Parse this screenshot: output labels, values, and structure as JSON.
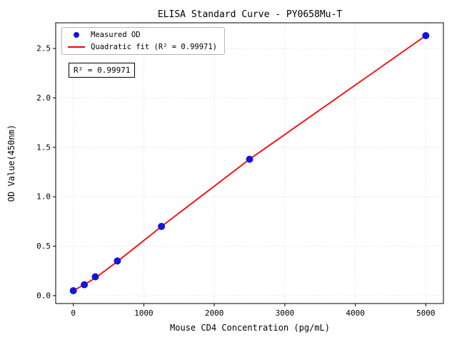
{
  "chart_data": {
    "type": "scatter",
    "title": "ELISA Standard Curve - PY0658Mu-T",
    "xlabel": "Mouse CD4 Concentration (pg/mL)",
    "ylabel": "OD Value(450nm)",
    "xlim": [
      -250,
      5250
    ],
    "ylim": [
      -0.08,
      2.76
    ],
    "xticks": [
      0,
      1000,
      2000,
      3000,
      4000,
      5000
    ],
    "xtick_labels": [
      "0",
      "1000",
      "2000",
      "3000",
      "4000",
      "5000"
    ],
    "yticks": [
      0.0,
      0.5,
      1.0,
      1.5,
      2.0,
      2.5
    ],
    "ytick_labels": [
      "0.0",
      "0.5",
      "1.0",
      "1.5",
      "2.0",
      "2.5"
    ],
    "grid": true,
    "legend_position": "upper-left",
    "legend": [
      "Measured OD",
      "Quadratic fit (R² = 0.99971)"
    ],
    "annotation": "R² = 0.99971",
    "colors": {
      "points": "#1414dd",
      "fit_line": "#ff0000"
    },
    "series": [
      {
        "name": "Measured OD",
        "type": "scatter",
        "x": [
          0,
          156.25,
          312.5,
          625,
          1250,
          2500,
          5000
        ],
        "y": [
          0.05,
          0.11,
          0.19,
          0.35,
          0.7,
          1.38,
          2.63
        ]
      },
      {
        "name": "Quadratic fit (R² = 0.99971)",
        "type": "line",
        "x": [
          0,
          156.25,
          312.5,
          625,
          1250,
          2500,
          5000
        ],
        "y": [
          0.05,
          0.112,
          0.178,
          0.345,
          0.699,
          1.38,
          2.63
        ]
      }
    ]
  }
}
